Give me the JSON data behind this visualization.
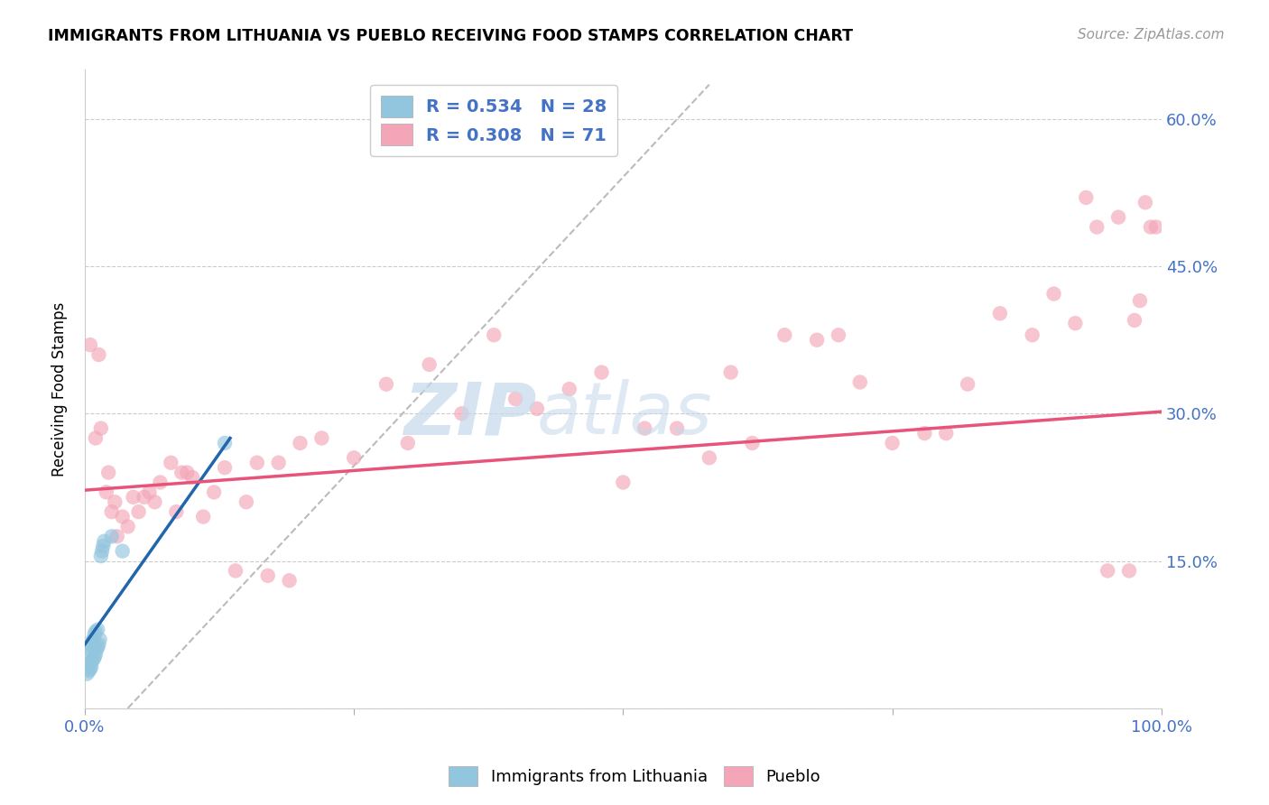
{
  "title": "IMMIGRANTS FROM LITHUANIA VS PUEBLO RECEIVING FOOD STAMPS CORRELATION CHART",
  "source": "Source: ZipAtlas.com",
  "tick_color": "#4472c4",
  "ylabel": "Receiving Food Stamps",
  "xlim": [
    0.0,
    1.0
  ],
  "ylim": [
    0.0,
    0.65
  ],
  "x_ticks": [
    0.0,
    0.25,
    0.5,
    0.75,
    1.0
  ],
  "x_tick_labels": [
    "0.0%",
    "",
    "",
    "",
    "100.0%"
  ],
  "y_ticks": [
    0.0,
    0.15,
    0.3,
    0.45,
    0.6
  ],
  "y_tick_labels": [
    "",
    "15.0%",
    "30.0%",
    "45.0%",
    "60.0%"
  ],
  "legend_r1": "R = 0.534   N = 28",
  "legend_r2": "R = 0.308   N = 71",
  "blue_color": "#92c5de",
  "pink_color": "#f4a6b8",
  "blue_line_color": "#2166ac",
  "pink_line_color": "#e8537a",
  "dashed_line_color": "#bbbbbb",
  "watermark_zip": "ZIP",
  "watermark_atlas": "atlas",
  "blue_scatter_x": [
    0.002,
    0.003,
    0.004,
    0.004,
    0.005,
    0.005,
    0.006,
    0.006,
    0.007,
    0.007,
    0.008,
    0.008,
    0.009,
    0.009,
    0.01,
    0.01,
    0.011,
    0.012,
    0.012,
    0.013,
    0.014,
    0.015,
    0.016,
    0.017,
    0.018,
    0.025,
    0.035,
    0.13
  ],
  "blue_scatter_y": [
    0.035,
    0.045,
    0.038,
    0.055,
    0.04,
    0.06,
    0.042,
    0.065,
    0.048,
    0.068,
    0.05,
    0.07,
    0.052,
    0.075,
    0.055,
    0.078,
    0.06,
    0.062,
    0.08,
    0.065,
    0.07,
    0.155,
    0.16,
    0.165,
    0.17,
    0.175,
    0.16,
    0.27
  ],
  "pink_scatter_x": [
    0.005,
    0.01,
    0.013,
    0.015,
    0.02,
    0.022,
    0.025,
    0.028,
    0.03,
    0.035,
    0.04,
    0.045,
    0.05,
    0.055,
    0.06,
    0.065,
    0.07,
    0.08,
    0.085,
    0.09,
    0.095,
    0.1,
    0.11,
    0.12,
    0.13,
    0.14,
    0.15,
    0.16,
    0.17,
    0.18,
    0.19,
    0.2,
    0.22,
    0.25,
    0.28,
    0.3,
    0.32,
    0.35,
    0.38,
    0.4,
    0.42,
    0.45,
    0.48,
    0.5,
    0.52,
    0.55,
    0.58,
    0.6,
    0.62,
    0.65,
    0.68,
    0.7,
    0.72,
    0.75,
    0.78,
    0.8,
    0.82,
    0.85,
    0.88,
    0.9,
    0.92,
    0.93,
    0.94,
    0.95,
    0.96,
    0.97,
    0.975,
    0.98,
    0.985,
    0.99,
    0.995
  ],
  "pink_scatter_y": [
    0.37,
    0.275,
    0.36,
    0.285,
    0.22,
    0.24,
    0.2,
    0.21,
    0.175,
    0.195,
    0.185,
    0.215,
    0.2,
    0.215,
    0.22,
    0.21,
    0.23,
    0.25,
    0.2,
    0.24,
    0.24,
    0.235,
    0.195,
    0.22,
    0.245,
    0.14,
    0.21,
    0.25,
    0.135,
    0.25,
    0.13,
    0.27,
    0.275,
    0.255,
    0.33,
    0.27,
    0.35,
    0.3,
    0.38,
    0.315,
    0.305,
    0.325,
    0.342,
    0.23,
    0.285,
    0.285,
    0.255,
    0.342,
    0.27,
    0.38,
    0.375,
    0.38,
    0.332,
    0.27,
    0.28,
    0.28,
    0.33,
    0.402,
    0.38,
    0.422,
    0.392,
    0.52,
    0.49,
    0.14,
    0.5,
    0.14,
    0.395,
    0.415,
    0.515,
    0.49,
    0.49
  ],
  "blue_line_x": [
    0.0,
    0.135
  ],
  "blue_line_y": [
    0.065,
    0.275
  ],
  "pink_line_x": [
    0.0,
    1.0
  ],
  "pink_line_y": [
    0.222,
    0.302
  ],
  "dash_line_x": [
    0.04,
    0.58
  ],
  "dash_line_y": [
    0.0,
    0.635
  ]
}
